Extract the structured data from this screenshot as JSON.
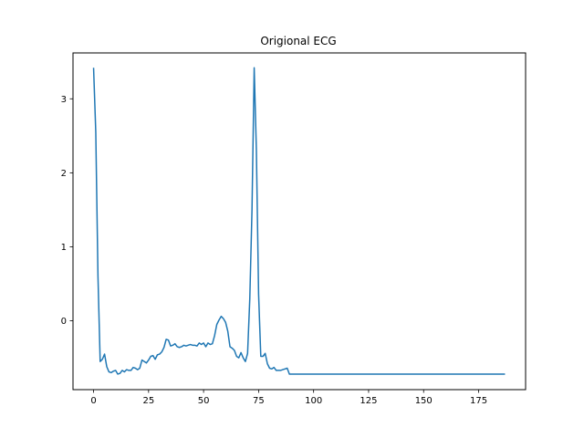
{
  "chart_data": {
    "type": "line",
    "title": "Origional ECG",
    "xlabel": "",
    "ylabel": "",
    "xlim": [
      -9.35,
      196.35
    ],
    "ylim": [
      -0.93,
      3.62
    ],
    "xticks": [
      0,
      25,
      50,
      75,
      100,
      125,
      150,
      175
    ],
    "yticks": [
      0,
      1,
      2,
      3
    ],
    "grid": false,
    "legend": "none",
    "series": [
      {
        "color": "#1f77b4",
        "x": [
          0,
          1,
          2,
          3,
          4,
          5,
          6,
          7,
          8,
          9,
          10,
          11,
          12,
          13,
          14,
          15,
          16,
          17,
          18,
          19,
          20,
          21,
          22,
          23,
          24,
          25,
          26,
          27,
          28,
          29,
          30,
          31,
          32,
          33,
          34,
          35,
          36,
          37,
          38,
          39,
          40,
          41,
          42,
          43,
          44,
          45,
          46,
          47,
          48,
          49,
          50,
          51,
          52,
          53,
          54,
          55,
          56,
          57,
          58,
          59,
          60,
          61,
          62,
          63,
          64,
          65,
          66,
          67,
          68,
          69,
          70,
          71,
          72,
          73,
          74,
          75,
          76,
          77,
          78,
          79,
          80,
          81,
          82,
          83,
          84,
          85,
          86,
          87,
          88,
          89,
          90,
          91,
          187
        ],
        "y": [
          3.42,
          2.55,
          0.6,
          -0.55,
          -0.52,
          -0.45,
          -0.62,
          -0.69,
          -0.7,
          -0.68,
          -0.67,
          -0.72,
          -0.71,
          -0.67,
          -0.69,
          -0.66,
          -0.67,
          -0.67,
          -0.63,
          -0.64,
          -0.66,
          -0.64,
          -0.53,
          -0.55,
          -0.57,
          -0.53,
          -0.48,
          -0.47,
          -0.52,
          -0.46,
          -0.45,
          -0.42,
          -0.36,
          -0.25,
          -0.26,
          -0.34,
          -0.33,
          -0.31,
          -0.35,
          -0.36,
          -0.35,
          -0.33,
          -0.34,
          -0.33,
          -0.32,
          -0.33,
          -0.33,
          -0.34,
          -0.3,
          -0.32,
          -0.3,
          -0.35,
          -0.3,
          -0.32,
          -0.31,
          -0.2,
          -0.05,
          0.01,
          0.06,
          0.03,
          -0.02,
          -0.14,
          -0.35,
          -0.37,
          -0.4,
          -0.48,
          -0.5,
          -0.43,
          -0.5,
          -0.55,
          -0.44,
          0.3,
          1.5,
          3.42,
          2.3,
          0.36,
          -0.48,
          -0.48,
          -0.44,
          -0.58,
          -0.64,
          -0.65,
          -0.63,
          -0.67,
          -0.67,
          -0.67,
          -0.66,
          -0.65,
          -0.64,
          -0.72,
          -0.72,
          -0.72,
          -0.72
        ]
      }
    ]
  }
}
